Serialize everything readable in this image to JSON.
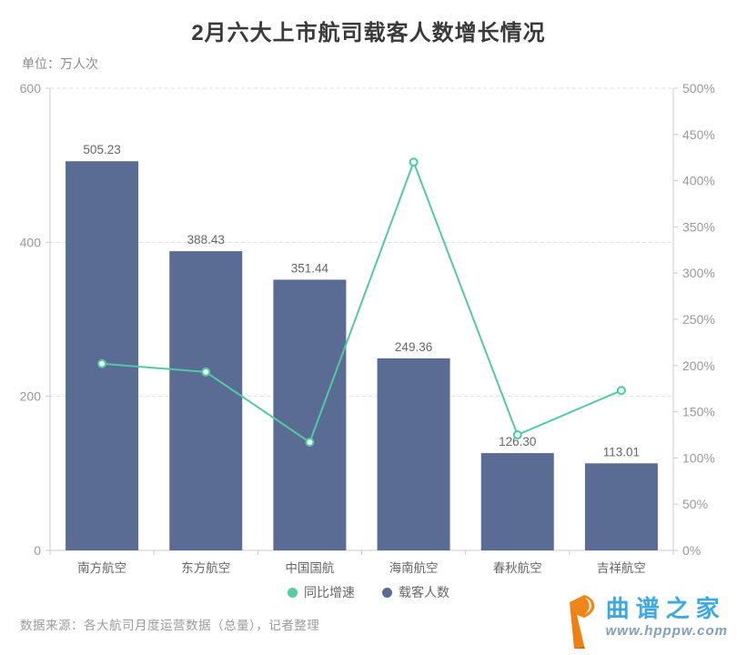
{
  "header": {
    "title": "2月六大上市航司载客人数增长情况",
    "unit_label": "单位：万人次"
  },
  "chart_data": {
    "type": "bar",
    "combo": "bar+line dual axis",
    "title": "2月六大上市航司载客人数增长情况",
    "ylabel_left": "万人次",
    "categories": [
      "南方航空",
      "东方航空",
      "中国国航",
      "海南航空",
      "春秋航空",
      "吉祥航空"
    ],
    "series": [
      {
        "name": "载客人数",
        "type": "bar",
        "axis": "left",
        "values": [
          505.23,
          388.43,
          351.44,
          249.36,
          126.3,
          113.01
        ],
        "labels": [
          "505.23",
          "388.43",
          "351.44",
          "249.36",
          "126.30",
          "113.01"
        ],
        "color": "#5a6c94"
      },
      {
        "name": "同比增速",
        "type": "line",
        "axis": "right",
        "values_percent": [
          202,
          193,
          117,
          420,
          125,
          173
        ],
        "color": "#54c8a2"
      }
    ],
    "left_axis": {
      "min": 0,
      "max": 600,
      "tick_labels": [
        "0",
        "200",
        "400",
        "600"
      ],
      "tick_values": [
        0,
        200,
        400,
        600
      ]
    },
    "right_axis": {
      "min": 0,
      "max": 500,
      "tick_labels": [
        "0%",
        "50%",
        "100%",
        "150%",
        "200%",
        "250%",
        "300%",
        "350%",
        "400%",
        "450%",
        "500%"
      ],
      "tick_values": [
        0,
        50,
        100,
        150,
        200,
        250,
        300,
        350,
        400,
        450,
        500
      ]
    },
    "grid": {
      "horizontal_dashed_at_left_values": [
        200,
        400,
        600
      ],
      "color": "#e1e1e1"
    },
    "legend_position": "bottom"
  },
  "legend": {
    "items": [
      {
        "label": "同比增速",
        "color": "#5bcba3"
      },
      {
        "label": "载客人数",
        "color": "#5a6c94"
      }
    ]
  },
  "footer": {
    "source_note": "数据来源：各大航司月度运营数据（总量），记者整理"
  },
  "watermark": {
    "site_name": "曲谱之家",
    "site_url": "www.hpppw.com",
    "logo_color": "#f08519",
    "name_color": "#3fa8e0",
    "url_color": "#7f9fbe"
  },
  "colors": {
    "bar": "#5a6c94",
    "line": "#54c8a2",
    "title_text": "#3a3a3a",
    "axis_line": "#cccccc",
    "axis_tick_text": "#999999",
    "value_label_text": "#666666",
    "background": "#ffffff"
  }
}
